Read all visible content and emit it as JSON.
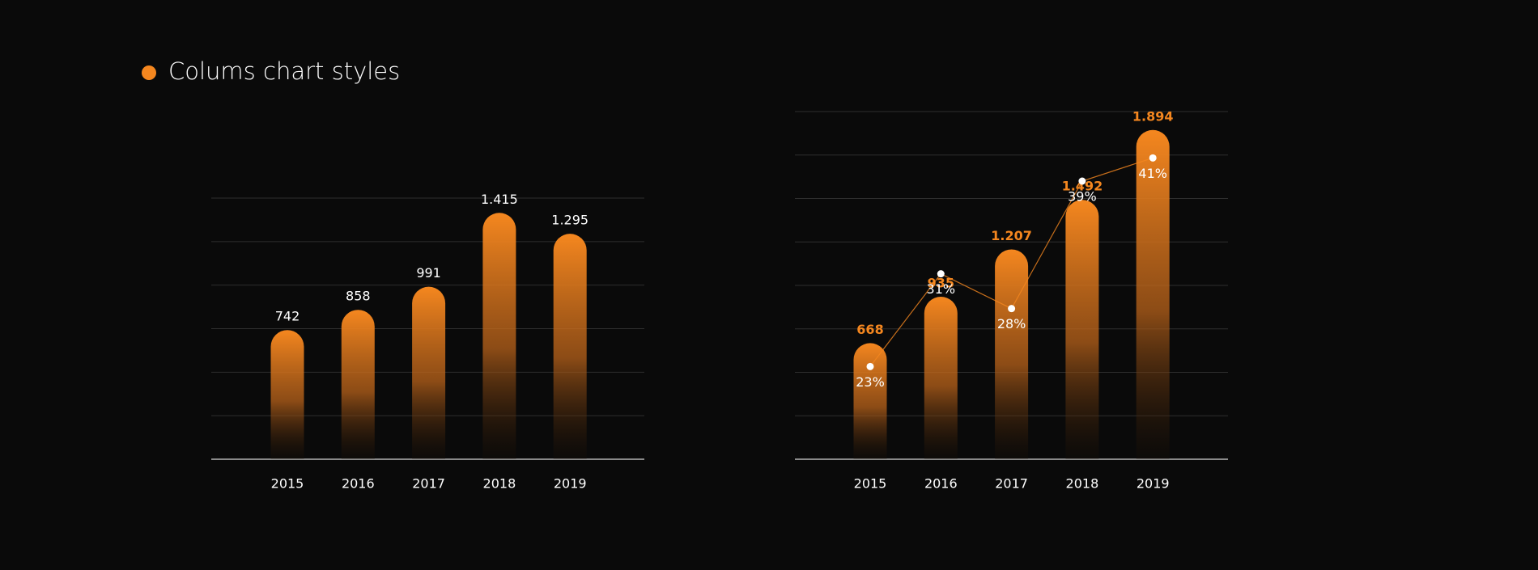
{
  "title": "Colums chart styles",
  "chart_data": [
    {
      "type": "bar",
      "categories": [
        "2015",
        "2016",
        "2017",
        "2018",
        "2019"
      ],
      "values": [
        742,
        858,
        991,
        1415,
        1295
      ],
      "value_labels": [
        "742",
        "858",
        "991",
        "1.415",
        "1.295"
      ],
      "color": "#f5871f",
      "label_color": "#ffffff",
      "ylim": [
        0,
        1500
      ],
      "yticks": [
        0,
        250,
        500,
        750,
        1000,
        1250,
        1500
      ],
      "grid": true
    },
    {
      "type": "bar",
      "categories": [
        "2015",
        "2016",
        "2017",
        "2018",
        "2019"
      ],
      "values": [
        668,
        935,
        1207,
        1492,
        1894
      ],
      "value_labels": [
        "668",
        "935",
        "1.207",
        "1.492",
        "1.894"
      ],
      "color": "#f5871f",
      "label_color": "#f5871f",
      "ylim": [
        0,
        2000
      ],
      "yticks": [
        0,
        250,
        500,
        750,
        1000,
        1250,
        1500,
        1750,
        2000
      ],
      "grid": true,
      "line": {
        "values": [
          23,
          31,
          28,
          39,
          41
        ],
        "value_labels": [
          "23%",
          "31%",
          "28%",
          "39%",
          "41%"
        ],
        "axis": "y2",
        "color": "#f5871f"
      },
      "y2lim": [
        15,
        45
      ]
    }
  ]
}
